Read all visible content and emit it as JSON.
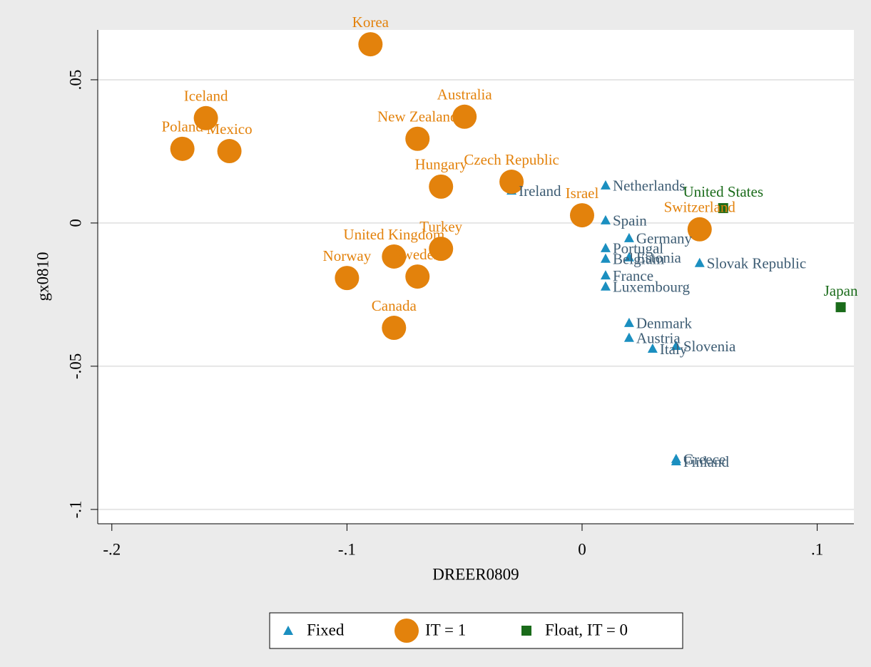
{
  "chart_data": {
    "type": "scatter",
    "xlabel": "DREER0809",
    "ylabel": "gx0810",
    "xlim": [
      -0.206,
      0.1156
    ],
    "ylim": [
      -0.105,
      0.0674
    ],
    "xticks": [
      {
        "value": -0.2,
        "label": "-.2"
      },
      {
        "value": -0.1,
        "label": "-.1"
      },
      0,
      {
        "value": 0.1,
        "label": ".1"
      }
    ],
    "yticks": [
      {
        "value": -0.1,
        "label": "-.1"
      },
      {
        "value": -0.05,
        "label": "-.05"
      },
      0,
      {
        "value": 0.05,
        "label": ".05"
      }
    ],
    "grid": true,
    "legend": "bottom",
    "series": [
      {
        "name": "Fixed",
        "marker": "triangle",
        "color": "#1b8fc0",
        "label_color": "#3e5d74",
        "labels": [
          "Ireland",
          "Netherlands",
          "Spain",
          "Germany",
          "Portugal",
          "Belgium",
          "Estonia",
          "Slovak Republic",
          "France",
          "Luxembourg",
          "Denmark",
          "Austria",
          "Slovenia",
          "Italy",
          "Greece",
          "Finland"
        ],
        "x": [
          -0.03,
          0.01,
          0.01,
          0.02,
          0.01,
          0.01,
          0.02,
          0.05,
          0.01,
          0.01,
          0.02,
          0.02,
          0.04,
          0.03,
          0.04,
          0.04
        ],
        "values": [
          0.0114,
          0.0132,
          0.001,
          -0.0052,
          -0.0087,
          -0.0124,
          -0.0119,
          -0.0139,
          -0.0182,
          -0.0221,
          -0.0348,
          -0.04,
          -0.0428,
          -0.0438,
          -0.0823,
          -0.0831
        ]
      },
      {
        "name": "IT = 1",
        "marker": "circle",
        "color": "#e3820c",
        "label_color": "#e3820c",
        "labels": [
          "Korea",
          "Iceland",
          "Poland",
          "Mexico",
          "Australia",
          "New Zealand",
          "Czech Republic",
          "Hungary",
          "Israel",
          "Switzerland",
          "Turkey",
          "United Kingdom",
          "Sweden",
          "Norway",
          "Canada"
        ],
        "x": [
          -0.09,
          -0.16,
          -0.17,
          -0.15,
          -0.05,
          -0.07,
          -0.03,
          -0.06,
          0,
          0.05,
          -0.06,
          -0.08,
          -0.07,
          -0.1,
          -0.08
        ],
        "values": [
          0.0624,
          0.0366,
          0.0259,
          0.0251,
          0.0371,
          0.0294,
          0.0144,
          0.0127,
          0.0027,
          -0.0022,
          -0.009,
          -0.0117,
          -0.0187,
          -0.0192,
          -0.0366
        ]
      },
      {
        "name": "Float, IT = 0",
        "marker": "square",
        "color": "#1a6b1a",
        "label_color": "#1a6b1a",
        "labels": [
          "United States",
          "Japan"
        ],
        "x": [
          0.06,
          0.11
        ],
        "values": [
          0.0052,
          -0.0294
        ]
      }
    ]
  }
}
